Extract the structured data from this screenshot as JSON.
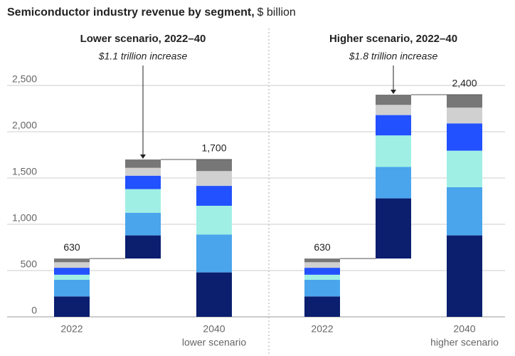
{
  "title": "Semiconductor industry revenue by segment,",
  "subtitle": "$ billion",
  "chart_data": [
    {
      "type": "waterfall",
      "title": "Lower scenario, 2022–40",
      "annotation": "$1.1 trillion increase",
      "categories": [
        "2022",
        null,
        "2040"
      ],
      "category_notes": [
        null,
        null,
        "lower scenario"
      ],
      "measure": [
        "total",
        "increase",
        "total"
      ],
      "totals": [
        630,
        null,
        1700
      ],
      "total_labels": [
        "630",
        null,
        "1,700"
      ],
      "series": [
        {
          "color": "#0b1f6e",
          "values": [
            220,
            250,
            480
          ]
        },
        {
          "color": "#4aa5ec",
          "values": [
            180,
            245,
            410
          ]
        },
        {
          "color": "#a0efe5",
          "values": [
            55,
            255,
            310
          ]
        },
        {
          "color": "#2251ff",
          "values": [
            75,
            145,
            215
          ]
        },
        {
          "color": "#d0d0d0",
          "values": [
            60,
            85,
            160
          ]
        },
        {
          "color": "#777777",
          "values": [
            40,
            90,
            125
          ]
        }
      ],
      "ylim": [
        0,
        2500
      ],
      "yticks": [
        0,
        500,
        {
          "value": 1000,
          "label": "1,000"
        },
        {
          "value": 1500,
          "label": "1,500"
        },
        {
          "value": 2000,
          "label": "2,000"
        },
        {
          "value": 2500,
          "label": "2,500"
        }
      ],
      "grid": true
    },
    {
      "type": "waterfall",
      "title": "Higher scenario, 2022–40",
      "annotation": "$1.8 trillion increase",
      "categories": [
        "2022",
        null,
        "2040"
      ],
      "category_notes": [
        null,
        null,
        "higher scenario"
      ],
      "measure": [
        "total",
        "increase",
        "total"
      ],
      "totals": [
        630,
        null,
        2400
      ],
      "total_labels": [
        "630",
        null,
        "2,400"
      ],
      "series": [
        {
          "color": "#0b1f6e",
          "values": [
            220,
            650,
            880
          ]
        },
        {
          "color": "#4aa5ec",
          "values": [
            180,
            340,
            520
          ]
        },
        {
          "color": "#a0efe5",
          "values": [
            55,
            340,
            395
          ]
        },
        {
          "color": "#2251ff",
          "values": [
            75,
            220,
            295
          ]
        },
        {
          "color": "#d0d0d0",
          "values": [
            60,
            110,
            170
          ]
        },
        {
          "color": "#777777",
          "values": [
            40,
            110,
            140
          ]
        }
      ],
      "ylim": [
        0,
        2500
      ],
      "yticks": [
        0,
        500,
        {
          "value": 1000,
          "label": "1,000"
        },
        {
          "value": 1500,
          "label": "1,500"
        },
        {
          "value": 2000,
          "label": "2,000"
        },
        {
          "value": 2500,
          "label": "2,500"
        }
      ],
      "grid": true
    }
  ]
}
